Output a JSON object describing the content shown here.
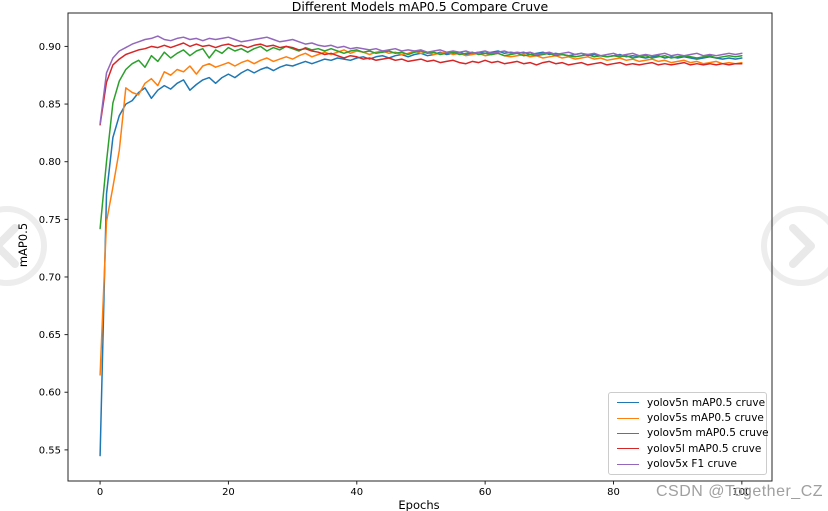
{
  "page": {
    "watermark_text": "CSDN @Together_CZ",
    "watermark_color": "#a0a0a0",
    "carousel_prev_icon": "chevron-left",
    "carousel_next_icon": "chevron-right"
  },
  "chart_data": {
    "type": "line",
    "title": "Different Models mAP0.5 Compare Cruve",
    "xlabel": "Epochs",
    "ylabel": "mAP0.5",
    "xlim": [
      -5,
      104.7
    ],
    "ylim": [
      0.523,
      0.929
    ],
    "xticks": [
      0,
      20,
      40,
      60,
      80,
      100
    ],
    "yticks": [
      0.55,
      0.6,
      0.65,
      0.7,
      0.75,
      0.8,
      0.85,
      0.9
    ],
    "grid": false,
    "legend_position": "lower right",
    "x_start": 0,
    "x_step": 1,
    "series": [
      {
        "name": "yolov5n mAP0.5 cruve",
        "color": "#1f77b4",
        "values": [
          0.545,
          0.772,
          0.821,
          0.84,
          0.85,
          0.853,
          0.86,
          0.864,
          0.855,
          0.862,
          0.866,
          0.863,
          0.868,
          0.871,
          0.862,
          0.867,
          0.871,
          0.873,
          0.868,
          0.873,
          0.876,
          0.873,
          0.877,
          0.88,
          0.877,
          0.88,
          0.882,
          0.879,
          0.882,
          0.884,
          0.883,
          0.885,
          0.887,
          0.885,
          0.887,
          0.889,
          0.888,
          0.89,
          0.889,
          0.888,
          0.89,
          0.891,
          0.889,
          0.891,
          0.892,
          0.89,
          0.892,
          0.893,
          0.891,
          0.893,
          0.894,
          0.892,
          0.893,
          0.895,
          0.893,
          0.894,
          0.895,
          0.893,
          0.894,
          0.895,
          0.894,
          0.895,
          0.896,
          0.894,
          0.895,
          0.894,
          0.895,
          0.893,
          0.894,
          0.895,
          0.893,
          0.894,
          0.893,
          0.892,
          0.893,
          0.894,
          0.892,
          0.893,
          0.892,
          0.891,
          0.892,
          0.893,
          0.891,
          0.892,
          0.891,
          0.89,
          0.891,
          0.892,
          0.89,
          0.891,
          0.89,
          0.891,
          0.89,
          0.889,
          0.89,
          0.891,
          0.89,
          0.889,
          0.89,
          0.889,
          0.89
        ]
      },
      {
        "name": "yolov5s mAP0.5 cruve",
        "color": "#ff7f0e",
        "values": [
          0.615,
          0.748,
          0.778,
          0.81,
          0.864,
          0.86,
          0.858,
          0.868,
          0.872,
          0.866,
          0.878,
          0.875,
          0.88,
          0.878,
          0.883,
          0.876,
          0.883,
          0.885,
          0.882,
          0.884,
          0.886,
          0.883,
          0.886,
          0.888,
          0.885,
          0.888,
          0.89,
          0.887,
          0.889,
          0.891,
          0.889,
          0.892,
          0.894,
          0.891,
          0.893,
          0.895,
          0.893,
          0.895,
          0.897,
          0.894,
          0.896,
          0.895,
          0.893,
          0.895,
          0.896,
          0.894,
          0.895,
          0.893,
          0.894,
          0.896,
          0.894,
          0.895,
          0.893,
          0.894,
          0.895,
          0.893,
          0.894,
          0.892,
          0.893,
          0.894,
          0.892,
          0.893,
          0.894,
          0.892,
          0.891,
          0.892,
          0.893,
          0.891,
          0.892,
          0.89,
          0.891,
          0.892,
          0.89,
          0.891,
          0.889,
          0.89,
          0.891,
          0.889,
          0.89,
          0.888,
          0.889,
          0.89,
          0.888,
          0.889,
          0.887,
          0.888,
          0.889,
          0.887,
          0.888,
          0.886,
          0.887,
          0.888,
          0.886,
          0.887,
          0.885,
          0.886,
          0.887,
          0.885,
          0.886,
          0.885,
          0.886
        ]
      },
      {
        "name": "yolov5m mAP0.5 cruve",
        "color": "#2ca02c",
        "values": [
          0.742,
          0.8,
          0.851,
          0.87,
          0.88,
          0.885,
          0.888,
          0.882,
          0.892,
          0.887,
          0.895,
          0.89,
          0.894,
          0.897,
          0.892,
          0.896,
          0.898,
          0.89,
          0.897,
          0.894,
          0.899,
          0.896,
          0.898,
          0.895,
          0.898,
          0.9,
          0.896,
          0.899,
          0.897,
          0.9,
          0.898,
          0.896,
          0.899,
          0.897,
          0.898,
          0.896,
          0.898,
          0.896,
          0.894,
          0.896,
          0.897,
          0.895,
          0.896,
          0.894,
          0.895,
          0.896,
          0.894,
          0.895,
          0.893,
          0.895,
          0.896,
          0.894,
          0.895,
          0.893,
          0.894,
          0.895,
          0.893,
          0.894,
          0.895,
          0.893,
          0.894,
          0.893,
          0.894,
          0.892,
          0.893,
          0.894,
          0.892,
          0.893,
          0.892,
          0.893,
          0.894,
          0.892,
          0.893,
          0.892,
          0.891,
          0.892,
          0.893,
          0.891,
          0.892,
          0.891,
          0.892,
          0.891,
          0.892,
          0.89,
          0.891,
          0.892,
          0.89,
          0.891,
          0.892,
          0.89,
          0.891,
          0.892,
          0.891,
          0.89,
          0.891,
          0.892,
          0.89,
          0.891,
          0.892,
          0.891,
          0.892
        ]
      },
      {
        "name": "yolov5l mAP0.5 cruve",
        "color": "#d62728",
        "values": [
          0.832,
          0.869,
          0.884,
          0.889,
          0.893,
          0.895,
          0.897,
          0.898,
          0.9,
          0.899,
          0.901,
          0.899,
          0.901,
          0.903,
          0.9,
          0.902,
          0.9,
          0.901,
          0.899,
          0.901,
          0.902,
          0.9,
          0.901,
          0.899,
          0.901,
          0.902,
          0.9,
          0.901,
          0.899,
          0.9,
          0.899,
          0.897,
          0.898,
          0.896,
          0.895,
          0.893,
          0.894,
          0.892,
          0.89,
          0.892,
          0.891,
          0.889,
          0.89,
          0.888,
          0.889,
          0.89,
          0.888,
          0.889,
          0.887,
          0.888,
          0.889,
          0.887,
          0.888,
          0.886,
          0.887,
          0.888,
          0.886,
          0.885,
          0.887,
          0.886,
          0.888,
          0.886,
          0.887,
          0.885,
          0.886,
          0.887,
          0.885,
          0.886,
          0.884,
          0.886,
          0.887,
          0.885,
          0.886,
          0.884,
          0.885,
          0.886,
          0.884,
          0.885,
          0.886,
          0.884,
          0.885,
          0.886,
          0.884,
          0.885,
          0.884,
          0.885,
          0.886,
          0.884,
          0.885,
          0.884,
          0.885,
          0.886,
          0.884,
          0.885,
          0.884,
          0.885,
          0.884,
          0.885,
          0.884,
          0.885,
          0.885
        ]
      },
      {
        "name": "yolov5x F1 cruve",
        "color": "#9467bd",
        "values": [
          0.833,
          0.877,
          0.89,
          0.896,
          0.899,
          0.902,
          0.904,
          0.906,
          0.907,
          0.909,
          0.906,
          0.905,
          0.907,
          0.908,
          0.906,
          0.907,
          0.905,
          0.907,
          0.906,
          0.907,
          0.908,
          0.906,
          0.904,
          0.905,
          0.906,
          0.907,
          0.908,
          0.906,
          0.904,
          0.905,
          0.906,
          0.904,
          0.902,
          0.903,
          0.901,
          0.9,
          0.901,
          0.899,
          0.9,
          0.898,
          0.899,
          0.898,
          0.897,
          0.898,
          0.896,
          0.897,
          0.898,
          0.896,
          0.897,
          0.896,
          0.897,
          0.895,
          0.896,
          0.897,
          0.895,
          0.896,
          0.895,
          0.896,
          0.894,
          0.895,
          0.896,
          0.894,
          0.895,
          0.896,
          0.894,
          0.895,
          0.894,
          0.895,
          0.893,
          0.894,
          0.895,
          0.893,
          0.894,
          0.895,
          0.893,
          0.894,
          0.893,
          0.894,
          0.892,
          0.893,
          0.894,
          0.892,
          0.893,
          0.894,
          0.892,
          0.893,
          0.892,
          0.893,
          0.894,
          0.892,
          0.893,
          0.892,
          0.893,
          0.894,
          0.892,
          0.893,
          0.892,
          0.893,
          0.894,
          0.893,
          0.894
        ]
      }
    ]
  }
}
